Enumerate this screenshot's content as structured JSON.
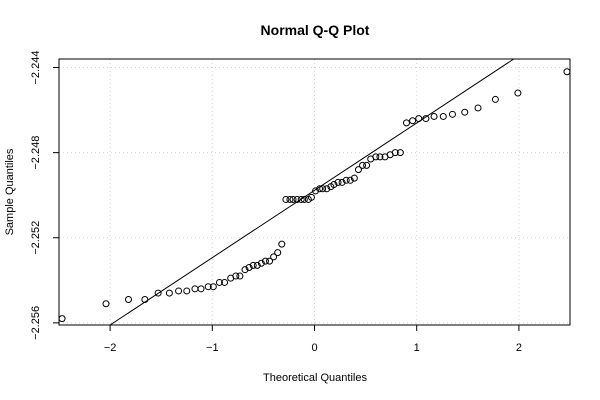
{
  "chart_data": {
    "type": "scatter",
    "title": "Normal Q-Q Plot",
    "xlabel": "Theoretical Quantiles",
    "ylabel": "Sample Quantiles",
    "xlim": [
      -2.5,
      2.5
    ],
    "ylim": [
      -2.2561,
      -2.2436
    ],
    "x_ticks": [
      -2,
      -1,
      0,
      1,
      2
    ],
    "x_tick_labels": [
      "−2",
      "−1",
      "0",
      "1",
      "2"
    ],
    "y_ticks": [
      -2.256,
      -2.252,
      -2.248,
      -2.244
    ],
    "y_tick_labels": [
      "−2.256",
      "−2.252",
      "−2.248",
      "−2.244"
    ],
    "grid": true,
    "reference_line": {
      "points": [
        [
          -2.0,
          -2.2561
        ],
        [
          1.95,
          -2.2436
        ]
      ]
    },
    "points": [
      [
        -2.47,
        -2.2558
      ],
      [
        -2.04,
        -2.2551
      ],
      [
        -1.82,
        -2.2549
      ],
      [
        -1.66,
        -2.2549
      ],
      [
        -1.53,
        -2.2546
      ],
      [
        -1.42,
        -2.2546
      ],
      [
        -1.33,
        -2.2545
      ],
      [
        -1.25,
        -2.2545
      ],
      [
        -1.17,
        -2.2544
      ],
      [
        -1.11,
        -2.2544
      ],
      [
        -1.04,
        -2.2543
      ],
      [
        -0.99,
        -2.2543
      ],
      [
        -0.93,
        -2.2541
      ],
      [
        -0.88,
        -2.2541
      ],
      [
        -0.82,
        -2.2539
      ],
      [
        -0.77,
        -2.2538
      ],
      [
        -0.73,
        -2.2538
      ],
      [
        -0.68,
        -2.2535
      ],
      [
        -0.64,
        -2.2534
      ],
      [
        -0.6,
        -2.2533
      ],
      [
        -0.56,
        -2.2533
      ],
      [
        -0.52,
        -2.2532
      ],
      [
        -0.48,
        -2.2531
      ],
      [
        -0.44,
        -2.2531
      ],
      [
        -0.4,
        -2.2529
      ],
      [
        -0.36,
        -2.2527
      ],
      [
        -0.32,
        -2.2523
      ],
      [
        -0.28,
        -2.2502
      ],
      [
        -0.24,
        -2.2502
      ],
      [
        -0.21,
        -2.2502
      ],
      [
        -0.17,
        -2.2502
      ],
      [
        -0.13,
        -2.2502
      ],
      [
        -0.1,
        -2.2502
      ],
      [
        -0.06,
        -2.2502
      ],
      [
        -0.03,
        -2.2501
      ],
      [
        0.01,
        -2.2498
      ],
      [
        0.05,
        -2.2497
      ],
      [
        0.08,
        -2.2497
      ],
      [
        0.12,
        -2.2497
      ],
      [
        0.16,
        -2.2496
      ],
      [
        0.19,
        -2.2495
      ],
      [
        0.23,
        -2.2494
      ],
      [
        0.27,
        -2.2494
      ],
      [
        0.31,
        -2.2493
      ],
      [
        0.35,
        -2.2493
      ],
      [
        0.39,
        -2.2492
      ],
      [
        0.43,
        -2.2488
      ],
      [
        0.47,
        -2.2486
      ],
      [
        0.51,
        -2.2486
      ],
      [
        0.55,
        -2.2483
      ],
      [
        0.6,
        -2.2482
      ],
      [
        0.64,
        -2.2482
      ],
      [
        0.69,
        -2.2482
      ],
      [
        0.74,
        -2.2481
      ],
      [
        0.79,
        -2.248
      ],
      [
        0.84,
        -2.248
      ],
      [
        0.9,
        -2.2466
      ],
      [
        0.96,
        -2.2465
      ],
      [
        1.02,
        -2.2464
      ],
      [
        1.09,
        -2.2464
      ],
      [
        1.17,
        -2.2463
      ],
      [
        1.26,
        -2.2463
      ],
      [
        1.35,
        -2.2462
      ],
      [
        1.47,
        -2.2461
      ],
      [
        1.6,
        -2.2459
      ],
      [
        1.77,
        -2.2455
      ],
      [
        1.99,
        -2.2452
      ],
      [
        2.47,
        -2.2442
      ]
    ]
  }
}
